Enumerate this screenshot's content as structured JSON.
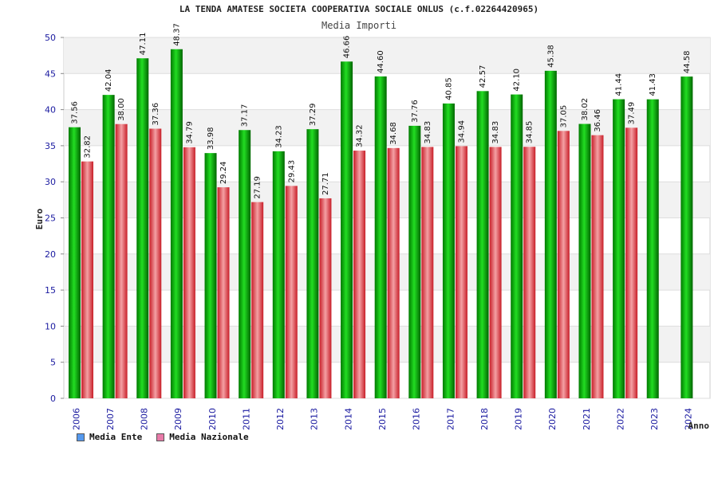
{
  "chart_data": {
    "type": "bar",
    "title": "LA TENDA AMATESE SOCIETA COOPERATIVA SOCIALE ONLUS (c.f.02264420965)",
    "subtitle": "Media Importi",
    "xlabel": "Anno",
    "ylabel": "Euro",
    "ylim": [
      0,
      50
    ],
    "yticks": [
      0,
      5,
      10,
      15,
      20,
      25,
      30,
      35,
      40,
      45,
      50
    ],
    "grid": true,
    "legend_position": "bottom-left",
    "categories": [
      "2006",
      "2007",
      "2008",
      "2009",
      "2010",
      "2011",
      "2012",
      "2013",
      "2014",
      "2015",
      "2016",
      "2017",
      "2018",
      "2019",
      "2020",
      "2021",
      "2022",
      "2023",
      "2024"
    ],
    "series": [
      {
        "name": "Media Ente",
        "color": "#00bb00",
        "legend_color": "#5599ee",
        "values": [
          37.56,
          42.04,
          47.11,
          48.37,
          33.98,
          37.17,
          34.23,
          37.29,
          46.66,
          44.6,
          37.76,
          40.85,
          42.57,
          42.1,
          45.38,
          38.02,
          41.44,
          41.43,
          44.58
        ],
        "labels": [
          "37.56",
          "42.04",
          "47.11",
          "48.37",
          "33.98",
          "37.17",
          "34.23",
          "37.29",
          "46.66",
          "44.60",
          "37.76",
          "40.85",
          "42.57",
          "42.10",
          "45.38",
          "38.02",
          "41.44",
          "41.43",
          "44.58"
        ]
      },
      {
        "name": "Media Nazionale",
        "color": "#e8323c",
        "legend_color": "#e87aa8",
        "values": [
          32.82,
          38.0,
          37.36,
          34.79,
          29.24,
          27.19,
          29.43,
          27.71,
          34.32,
          34.68,
          34.83,
          34.94,
          34.83,
          34.85,
          37.05,
          36.46,
          37.49,
          null,
          null
        ],
        "labels": [
          "32.82",
          "38.00",
          "37.36",
          "34.79",
          "29.24",
          "27.19",
          "29.43",
          "27.71",
          "34.32",
          "34.68",
          "34.83",
          "34.94",
          "34.83",
          "34.85",
          "37.05",
          "36.46",
          "37.49",
          "",
          ""
        ]
      }
    ]
  }
}
